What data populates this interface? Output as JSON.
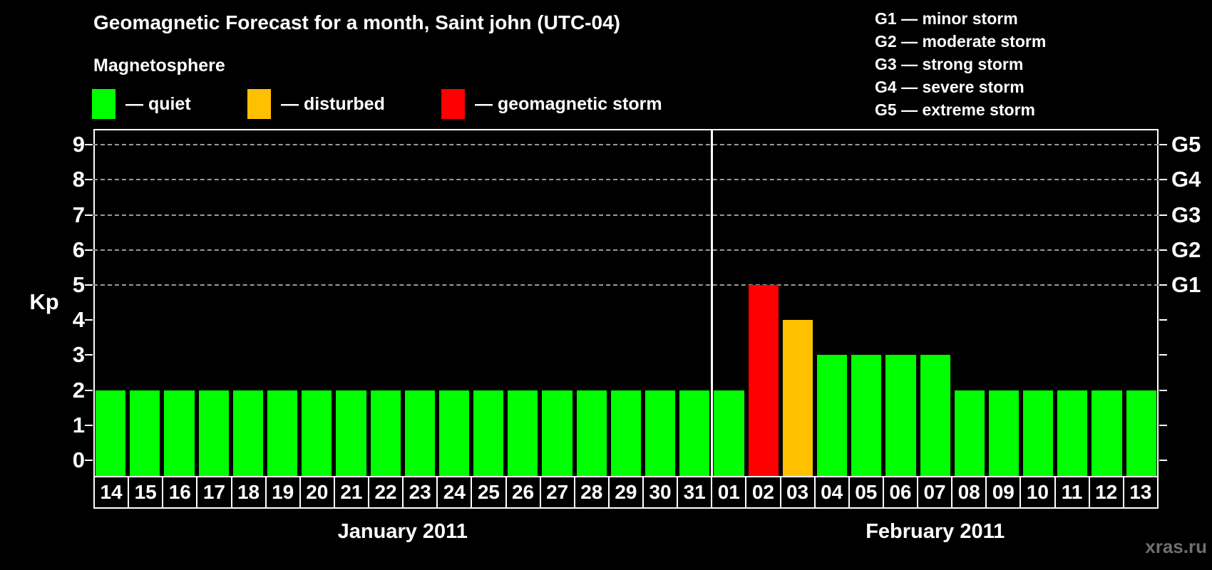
{
  "page": {
    "title": "Geomagnetic Forecast for a month, Saint john (UTC-04)",
    "watermark": "xras.ru"
  },
  "legend": {
    "heading": "Magnetosphere",
    "items": [
      {
        "name": "quiet",
        "label": "— quiet",
        "color": "#00ff00"
      },
      {
        "name": "disturbed",
        "label": "— disturbed",
        "color": "#ffc000"
      },
      {
        "name": "storm",
        "label": "— geomagnetic storm",
        "color": "#ff0000"
      }
    ]
  },
  "g_scale_legend": {
    "lines": [
      "G1 — minor storm",
      "G2 — moderate storm",
      "G3 — strong storm",
      "G4 — severe storm",
      "G5 — extreme storm"
    ]
  },
  "chart_data": {
    "type": "bar",
    "title": "Geomagnetic Forecast for a month, Saint john (UTC-04)",
    "ylabel": "Kp",
    "ylim": [
      0,
      9
    ],
    "y_ticks": [
      0,
      1,
      2,
      3,
      4,
      5,
      6,
      7,
      8,
      9
    ],
    "grid_levels_kp": [
      5,
      6,
      7,
      8,
      9
    ],
    "right_axis_labels": [
      {
        "kp": 5,
        "label": "G1"
      },
      {
        "kp": 6,
        "label": "G2"
      },
      {
        "kp": 7,
        "label": "G3"
      },
      {
        "kp": 8,
        "label": "G4"
      },
      {
        "kp": 9,
        "label": "G5"
      }
    ],
    "status_colors": {
      "quiet": "#00ff00",
      "disturbed": "#ffc000",
      "storm": "#ff0000"
    },
    "legend_position": "top-left",
    "grid": "dashed-horizontal-on-storm-levels",
    "months": [
      {
        "label": "January 2011",
        "days": [
          {
            "day": "14",
            "kp": 2,
            "status": "quiet"
          },
          {
            "day": "15",
            "kp": 2,
            "status": "quiet"
          },
          {
            "day": "16",
            "kp": 2,
            "status": "quiet"
          },
          {
            "day": "17",
            "kp": 2,
            "status": "quiet"
          },
          {
            "day": "18",
            "kp": 2,
            "status": "quiet"
          },
          {
            "day": "19",
            "kp": 2,
            "status": "quiet"
          },
          {
            "day": "20",
            "kp": 2,
            "status": "quiet"
          },
          {
            "day": "21",
            "kp": 2,
            "status": "quiet"
          },
          {
            "day": "22",
            "kp": 2,
            "status": "quiet"
          },
          {
            "day": "23",
            "kp": 2,
            "status": "quiet"
          },
          {
            "day": "24",
            "kp": 2,
            "status": "quiet"
          },
          {
            "day": "25",
            "kp": 2,
            "status": "quiet"
          },
          {
            "day": "26",
            "kp": 2,
            "status": "quiet"
          },
          {
            "day": "27",
            "kp": 2,
            "status": "quiet"
          },
          {
            "day": "28",
            "kp": 2,
            "status": "quiet"
          },
          {
            "day": "29",
            "kp": 2,
            "status": "quiet"
          },
          {
            "day": "30",
            "kp": 2,
            "status": "quiet"
          },
          {
            "day": "31",
            "kp": 2,
            "status": "quiet"
          }
        ]
      },
      {
        "label": "February 2011",
        "days": [
          {
            "day": "01",
            "kp": 2,
            "status": "quiet"
          },
          {
            "day": "02",
            "kp": 5,
            "status": "storm"
          },
          {
            "day": "03",
            "kp": 4,
            "status": "disturbed"
          },
          {
            "day": "04",
            "kp": 3,
            "status": "quiet"
          },
          {
            "day": "05",
            "kp": 3,
            "status": "quiet"
          },
          {
            "day": "06",
            "kp": 3,
            "status": "quiet"
          },
          {
            "day": "07",
            "kp": 3,
            "status": "quiet"
          },
          {
            "day": "08",
            "kp": 2,
            "status": "quiet"
          },
          {
            "day": "09",
            "kp": 2,
            "status": "quiet"
          },
          {
            "day": "10",
            "kp": 2,
            "status": "quiet"
          },
          {
            "day": "11",
            "kp": 2,
            "status": "quiet"
          },
          {
            "day": "12",
            "kp": 2,
            "status": "quiet"
          },
          {
            "day": "13",
            "kp": 2,
            "status": "quiet"
          }
        ]
      }
    ]
  }
}
